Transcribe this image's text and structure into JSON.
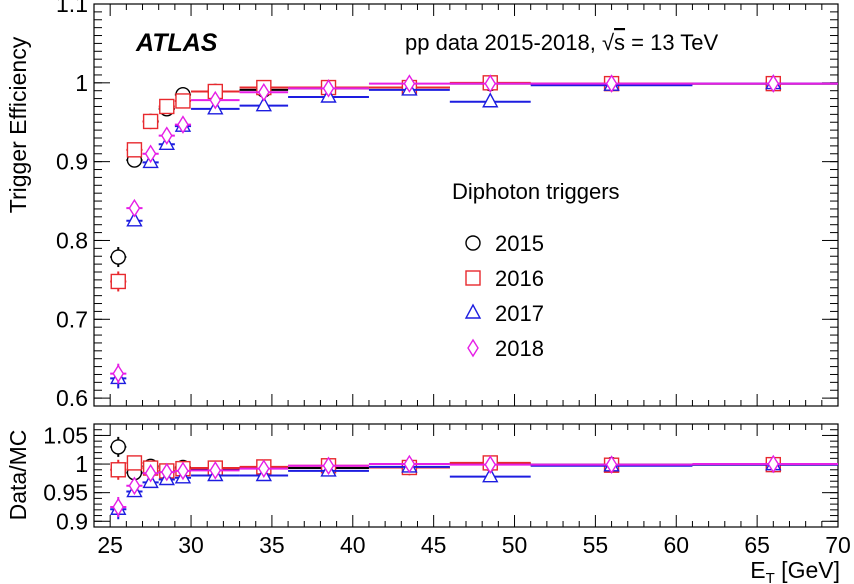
{
  "chart_data": [
    {
      "type": "scatter",
      "panel": "top",
      "experiment_label": "ATLAS",
      "info_prefix": "pp data 2015-2018, ",
      "info_sqrt": "√",
      "info_s": "s",
      "info_suffix": " = 13 TeV",
      "ylabel": "Trigger Efficiency",
      "xlabel_main": "E",
      "xlabel_sub": "T",
      "xlabel_unit": " [GeV]",
      "legend_title": "Diphoton triggers",
      "xlim": [
        24,
        70
      ],
      "ylim": [
        0.59,
        1.1
      ],
      "y_ticks": [
        "0.6",
        "0.7",
        "0.8",
        "0.9",
        "1",
        "1.1"
      ],
      "legend_position": "center-right",
      "bin_edges": [
        25,
        26,
        27,
        28,
        29,
        30,
        33,
        36,
        41,
        46,
        51,
        61,
        71
      ],
      "series": [
        {
          "name": "2015",
          "color": "#000000",
          "marker": "circle",
          "y": [
            0.779,
            0.902,
            0.951,
            0.967,
            0.985,
            0.989,
            0.991,
            0.993,
            0.994,
            0.999,
            0.999,
            0.999
          ]
        },
        {
          "name": "2016",
          "color": "#e8292e",
          "marker": "square",
          "y": [
            0.748,
            0.915,
            0.951,
            0.97,
            0.977,
            0.989,
            0.994,
            0.994,
            0.994,
            1.0,
            0.999,
            0.999
          ]
        },
        {
          "name": "2017",
          "color": "#1d1de0",
          "marker": "triangle",
          "y": [
            0.625,
            0.825,
            0.899,
            0.922,
            0.945,
            0.967,
            0.971,
            0.982,
            0.991,
            0.976,
            0.997,
            0.999
          ]
        },
        {
          "name": "2018",
          "color": "#e61ee6",
          "marker": "diamond",
          "y": [
            0.631,
            0.841,
            0.91,
            0.933,
            0.947,
            0.978,
            0.988,
            0.993,
            0.999,
            0.999,
            0.999,
            0.999
          ]
        }
      ]
    },
    {
      "type": "scatter",
      "panel": "bottom",
      "ylabel": "Data/MC",
      "xlim": [
        24,
        70
      ],
      "ylim": [
        0.89,
        1.07
      ],
      "y_ticks": [
        "0.9",
        "0.95",
        "1",
        "1.05"
      ],
      "x_ticks": [
        "25",
        "30",
        "35",
        "40",
        "45",
        "50",
        "55",
        "60",
        "65",
        "70"
      ],
      "series": [
        {
          "name": "2015",
          "y": [
            1.03,
            0.985,
            0.996,
            0.987,
            0.994,
            0.991,
            0.993,
            0.993,
            0.994,
            1.001,
            0.999,
            0.999
          ]
        },
        {
          "name": "2016",
          "y": [
            0.99,
            1.002,
            0.993,
            0.988,
            0.992,
            0.993,
            0.995,
            0.997,
            0.994,
            1.002,
            0.998,
            0.999
          ]
        },
        {
          "name": "2017",
          "y": [
            0.921,
            0.952,
            0.968,
            0.973,
            0.976,
            0.98,
            0.98,
            0.988,
            0.995,
            0.978,
            0.997,
            0.999
          ]
        },
        {
          "name": "2018",
          "y": [
            0.925,
            0.962,
            0.984,
            0.986,
            0.988,
            0.989,
            0.992,
            0.997,
            1.0,
            0.999,
            0.999,
            1.0
          ]
        }
      ]
    }
  ]
}
